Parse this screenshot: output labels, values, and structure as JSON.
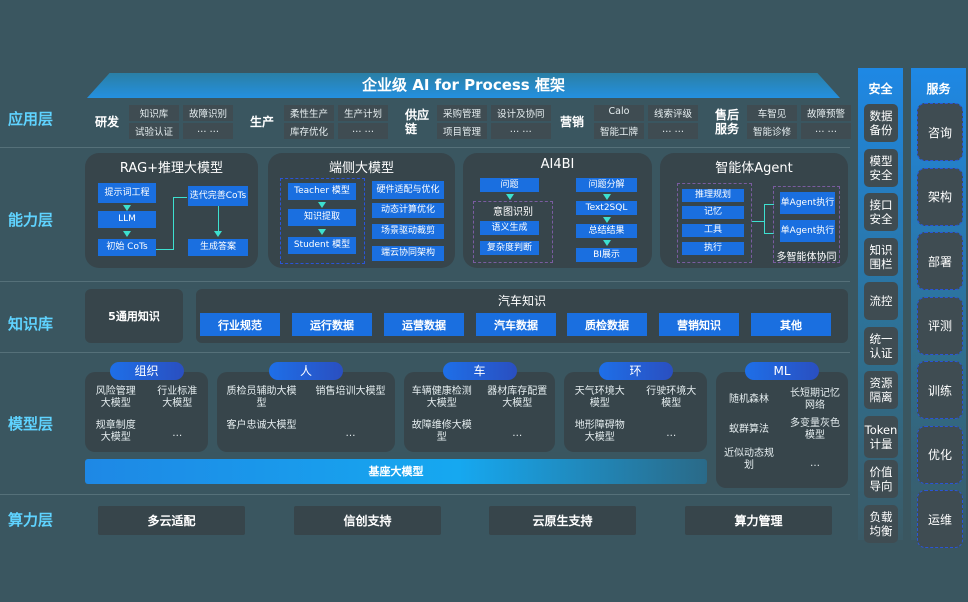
{
  "title": "企业级 AI for Process 框架",
  "layers": [
    "应用层",
    "能力层",
    "知识库",
    "模型层",
    "算力层"
  ],
  "app": [
    {
      "label": "研发",
      "items": [
        "知识库",
        "故障识别",
        "试验认证",
        "… …"
      ]
    },
    {
      "label": "生产",
      "items": [
        "柔性生产",
        "生产计划",
        "库存优化",
        "… …"
      ]
    },
    {
      "label": "供应链",
      "items": [
        "采购管理",
        "设计及协同",
        "项目管理",
        "… …"
      ]
    },
    {
      "label": "营销",
      "items": [
        "Calo",
        "线索评级",
        "智能工牌",
        "… …"
      ]
    },
    {
      "label": "售后服务",
      "items": [
        "车智见",
        "故障预警",
        "智能诊修",
        "… …"
      ]
    }
  ],
  "cap": {
    "rag": {
      "title": "RAG+推理大模型",
      "steps": [
        "提示词工程",
        "LLM",
        "初始 CoTs",
        "迭代完善CoTs",
        "生成答案"
      ]
    },
    "edge": {
      "title": "端侧大模型",
      "chain": [
        "Teacher 模型",
        "知识提取",
        "Student 模型"
      ],
      "side": [
        "硬件适配与优化",
        "动态计算优化",
        "场景驱动裁剪",
        "端云协同架构"
      ]
    },
    "bi": {
      "title": "AI4BI",
      "q": "问题",
      "intent": "意图识别",
      "intent_items": [
        "语义生成",
        "复杂度判断"
      ],
      "chain": [
        "问题分解",
        "Text2SQL",
        "总结结果",
        "BI展示"
      ]
    },
    "agent": {
      "title": "智能体Agent",
      "items": [
        "推理规划",
        "记忆",
        "工具",
        "执行"
      ],
      "exec": [
        "单Agent执行",
        "单Agent执行"
      ],
      "multi": "多智能体协同"
    }
  },
  "kb": {
    "general": "5通用知识",
    "auto_title": "汽车知识",
    "auto": [
      "行业规范",
      "运行数据",
      "运营数据",
      "汽车数据",
      "质检数据",
      "营销知识",
      "其他"
    ]
  },
  "model": {
    "groups": [
      {
        "tag": "组织",
        "items": [
          "风险管理大模型",
          "行业标准大模型",
          "规章制度大模型",
          "…"
        ]
      },
      {
        "tag": "人",
        "items": [
          "质检员辅助大模型",
          "销售培训大模型",
          "客户忠诚大模型",
          "…"
        ]
      },
      {
        "tag": "车",
        "items": [
          "车辆健康检测大模型",
          "器材库存配置大模型",
          "故障维修大模型",
          "…"
        ]
      },
      {
        "tag": "环",
        "items": [
          "天气环境大模型",
          "行驶环境大模型",
          "地形障碍物大模型",
          "…"
        ]
      }
    ],
    "ml": {
      "tag": "ML",
      "items": [
        "随机森林",
        "长短期记忆网络",
        "蚁群算法",
        "多变量灰色模型",
        "近似动态规划",
        "…"
      ]
    },
    "base": "基座大模型"
  },
  "compute": [
    "多云适配",
    "信创支持",
    "云原生支持",
    "算力管理"
  ],
  "security": {
    "title": "安全",
    "items": [
      "数据备份",
      "模型安全",
      "接口安全",
      "知识围栏",
      "流控",
      "统一认证",
      "资源隔离",
      "Token计量",
      "价值导向",
      "负载均衡"
    ]
  },
  "service": {
    "title": "服务",
    "items": [
      "咨询",
      "架构",
      "部署",
      "评测",
      "训练",
      "优化",
      "运维"
    ]
  }
}
